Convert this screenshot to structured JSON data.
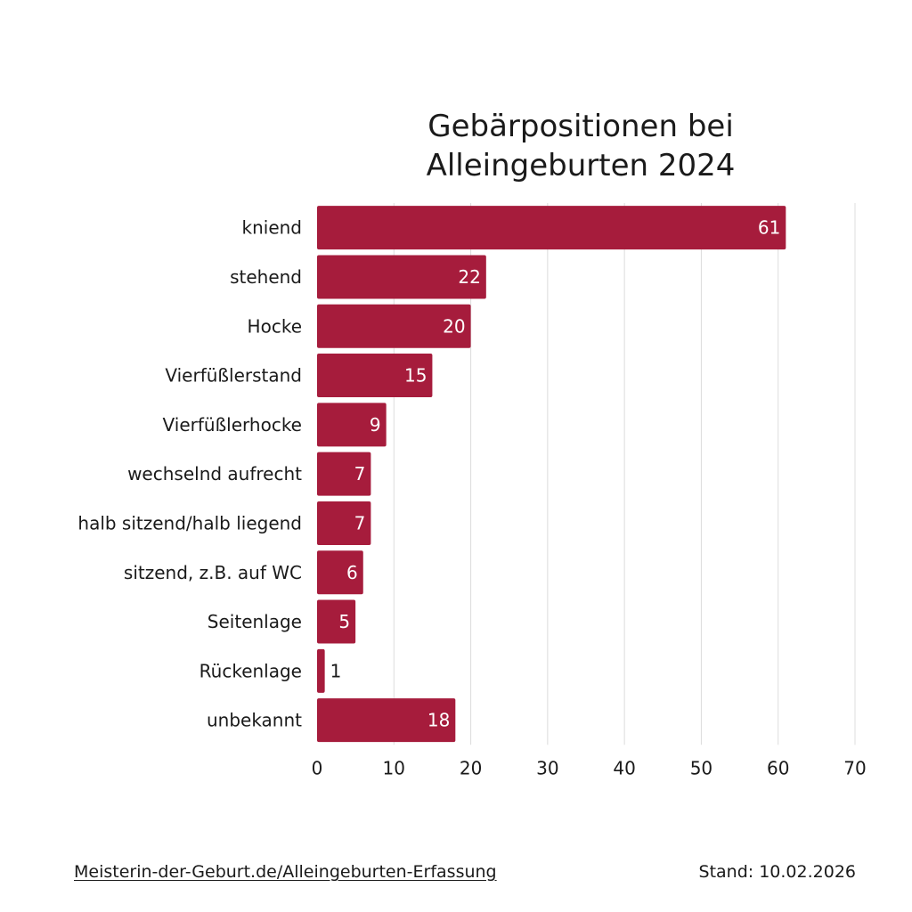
{
  "colors": {
    "bar": "#a61c3c",
    "grid": "#dcdcdc",
    "text": "#1a1a1a",
    "bar_label": "#ffffff"
  },
  "chart_data": {
    "type": "bar",
    "orientation": "horizontal",
    "title_lines": [
      "Gebärpositionen bei",
      "Alleingeburten 2024"
    ],
    "categories": [
      "kniend",
      "stehend",
      "Hocke",
      "Vierfüßlerstand",
      "Vierfüßlerhocke",
      "wechselnd aufrecht",
      "halb sitzend/halb liegend",
      "sitzend, z.B. auf WC",
      "Seitenlage",
      "Rückenlage",
      "unbekannt"
    ],
    "values": [
      61,
      22,
      20,
      15,
      9,
      7,
      7,
      6,
      5,
      1,
      18
    ],
    "xlim": [
      0,
      70
    ],
    "xticks": [
      0,
      10,
      20,
      30,
      40,
      50,
      60,
      70
    ],
    "grid": true,
    "legend": "none",
    "data_labels": true
  },
  "footer": {
    "link_text": "Meisterin-der-Geburt.de/Alleingeburten-Erfassung",
    "date_text": "Stand: 10.02.2026"
  }
}
